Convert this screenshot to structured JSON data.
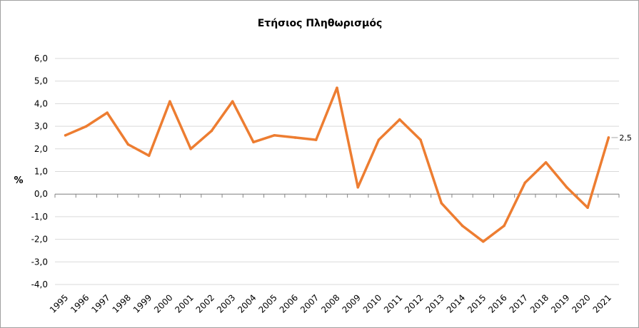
{
  "chart_data": {
    "type": "line",
    "title": "Ετήσιος Πληθωρισμός",
    "xlabel": "",
    "ylabel": "%",
    "ylim": [
      -4.0,
      6.0
    ],
    "ytick_step": 1.0,
    "grid": "horizontal",
    "x": [
      "1995",
      "1996",
      "1997",
      "1998",
      "1999",
      "2000",
      "2001",
      "2002",
      "2003",
      "2004",
      "2005",
      "2006",
      "2007",
      "2008",
      "2009",
      "2010",
      "2011",
      "2012",
      "2013",
      "2014",
      "2015",
      "2016",
      "2017",
      "2018",
      "2019",
      "2020",
      "2021"
    ],
    "series": [
      {
        "color": "#ED7D31",
        "values": [
          2.6,
          3.0,
          3.6,
          2.2,
          1.7,
          4.1,
          2.0,
          2.8,
          4.1,
          2.3,
          2.6,
          2.5,
          2.4,
          4.7,
          0.3,
          2.4,
          3.3,
          2.4,
          -0.4,
          -1.4,
          -2.1,
          -1.4,
          0.5,
          1.4,
          0.3,
          -0.6,
          2.5
        ]
      }
    ],
    "data_labels": [
      {
        "x": "2021",
        "text": "2,5"
      }
    ]
  }
}
